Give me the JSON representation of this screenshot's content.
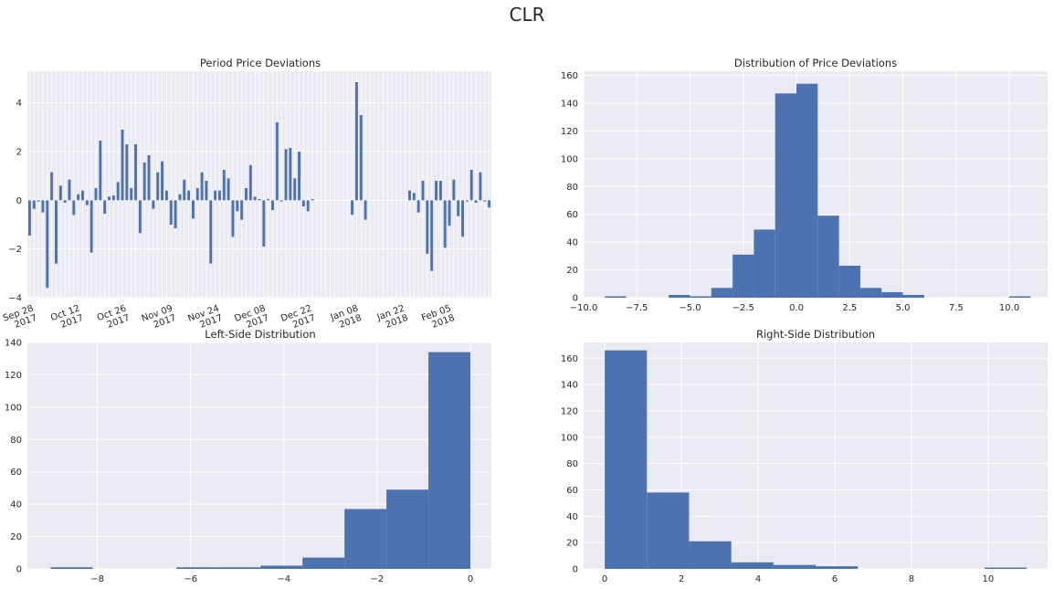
{
  "figure_title": "CLR",
  "colors": {
    "bar": "#4c72b0",
    "panel": "#eaeaf2",
    "grid": "#ffffff",
    "text": "#262626"
  },
  "chart_data": [
    {
      "type": "bar",
      "title": "Period Price Deviations",
      "ylim": [
        -4,
        5.3
      ],
      "yticks": [
        -4,
        -2,
        0,
        2,
        4
      ],
      "grid": true,
      "x_date_labels": [
        [
          "Sep 28",
          "2017"
        ],
        [
          "Oct 12",
          "2017"
        ],
        [
          "Oct 26",
          "2017"
        ],
        [
          "Nov 09",
          "2017"
        ],
        [
          "Nov 24",
          "2017"
        ],
        [
          "Dec 08",
          "2017"
        ],
        [
          "Dec 22",
          "2017"
        ],
        [
          "Jan 08",
          "2018"
        ],
        [
          "Jan 22",
          "2018"
        ],
        [
          "Feb 05",
          "2018"
        ]
      ],
      "values": [
        -1.45,
        -0.35,
        -0.05,
        -0.5,
        -3.6,
        1.15,
        -2.6,
        0.6,
        -0.1,
        0.85,
        -0.6,
        0.25,
        0.4,
        -0.2,
        -2.15,
        0.5,
        2.45,
        -0.55,
        0.15,
        0.2,
        0.75,
        2.9,
        2.3,
        0.5,
        2.3,
        -1.35,
        1.55,
        1.85,
        -0.35,
        1.15,
        1.6,
        0.4,
        -1.0,
        -1.15,
        0.25,
        0.85,
        0.4,
        -0.75,
        0.5,
        1.15,
        0.8,
        -2.6,
        0.4,
        0.4,
        1.25,
        0.9,
        -1.5,
        -0.45,
        -0.8,
        0.5,
        1.45,
        0.15,
        0.05,
        -1.9,
        0.05,
        -0.4,
        3.2,
        -0.05,
        2.1,
        2.15,
        0.9,
        2.0,
        -0.25,
        -0.45,
        0.05,
        0,
        0,
        0,
        0,
        0,
        0,
        0,
        0,
        -0.6,
        4.85,
        3.5,
        -0.8,
        0,
        0,
        0,
        0,
        0,
        0,
        0,
        0,
        0,
        0.4,
        0.3,
        -0.5,
        0.8,
        -2.2,
        -2.9,
        0.8,
        0.8,
        -1.95,
        -1.05,
        0.85,
        -0.65,
        -1.5,
        -0.05,
        1.25,
        -0.1,
        1.15,
        -0.05,
        -0.3
      ]
    },
    {
      "type": "bar",
      "title": "Distribution of Price Deviations",
      "xlim": [
        -10,
        11.8
      ],
      "ylim": [
        0,
        163
      ],
      "xticks": [
        -10.0,
        -7.5,
        -5.0,
        -2.5,
        0.0,
        2.5,
        5.0,
        7.5,
        10.0
      ],
      "xtick_labels": [
        "−10.0",
        "−7.5",
        "−5.0",
        "−2.5",
        "0.0",
        "2.5",
        "5.0",
        "7.5",
        "10.0"
      ],
      "yticks": [
        0,
        20,
        40,
        60,
        80,
        100,
        120,
        140,
        160
      ],
      "bin_edges": [
        -9.0,
        -8.0,
        -7.0,
        -6.0,
        -5.0,
        -4.0,
        -3.0,
        -2.0,
        -1.0,
        0.0,
        1.0,
        2.0,
        3.0,
        4.0,
        5.0,
        6.0,
        7.0,
        8.0,
        9.0,
        10.0,
        11.0
      ],
      "counts": [
        1,
        0,
        0,
        2,
        1,
        7,
        31,
        49,
        147,
        154,
        59,
        23,
        7,
        4,
        2,
        0,
        0,
        0,
        0,
        1
      ]
    },
    {
      "type": "bar",
      "title": "Left-Side Distribution",
      "xlim": [
        -9.5,
        0.45
      ],
      "ylim": [
        0,
        140
      ],
      "xticks": [
        -8,
        -6,
        -4,
        -2,
        0
      ],
      "xtick_labels": [
        "−8",
        "−6",
        "−4",
        "−2",
        "0"
      ],
      "yticks": [
        0,
        20,
        40,
        60,
        80,
        100,
        120,
        140
      ],
      "bin_edges": [
        -9.0,
        -8.1,
        -7.2,
        -6.3,
        -5.4,
        -4.5,
        -3.6,
        -2.7,
        -1.8,
        -0.9,
        0.0
      ],
      "counts": [
        1,
        0,
        0,
        1,
        1,
        2,
        7,
        37,
        49,
        134
      ]
    },
    {
      "type": "bar",
      "title": "Right-Side Distribution",
      "xlim": [
        -0.55,
        11.55
      ],
      "ylim": [
        0,
        172
      ],
      "xticks": [
        0,
        2,
        4,
        6,
        8,
        10
      ],
      "xtick_labels": [
        "0",
        "2",
        "4",
        "6",
        "8",
        "10"
      ],
      "yticks": [
        0,
        20,
        40,
        60,
        80,
        100,
        120,
        140,
        160
      ],
      "bin_edges": [
        0.0,
        1.1,
        2.2,
        3.3,
        4.4,
        5.5,
        6.6,
        7.7,
        8.8,
        9.9,
        11.0
      ],
      "counts": [
        166,
        58,
        21,
        5,
        3,
        2,
        0,
        0,
        0,
        1
      ]
    }
  ]
}
